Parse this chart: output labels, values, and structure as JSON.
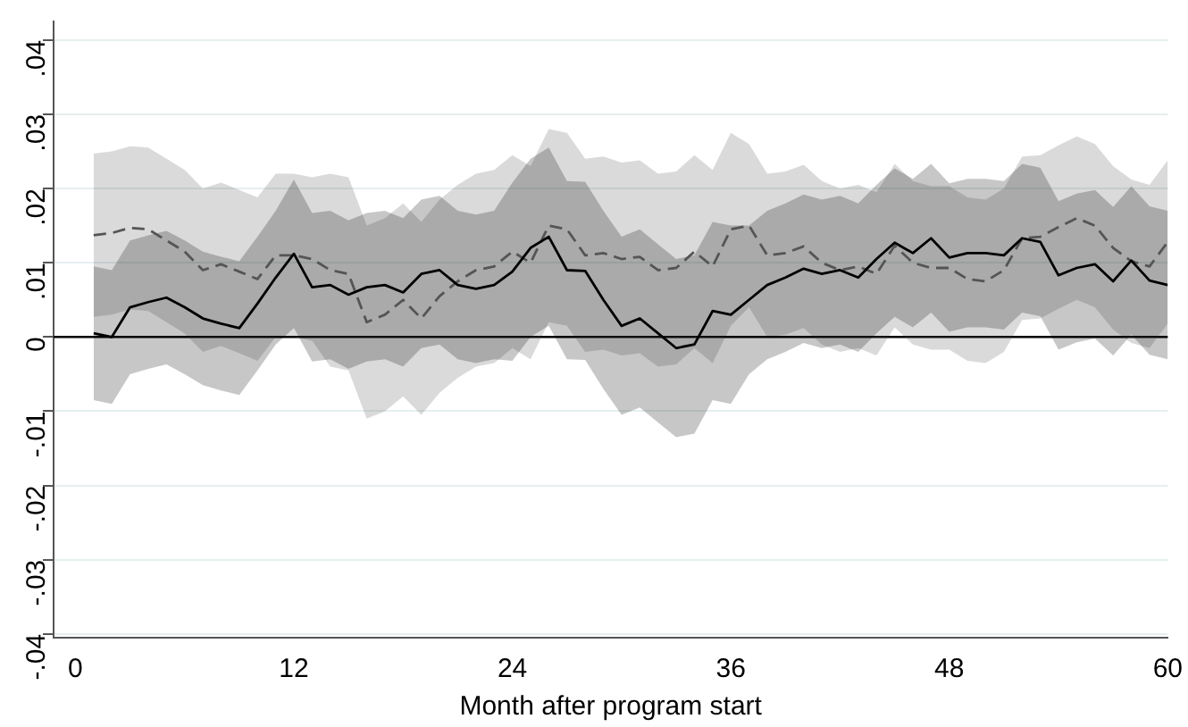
{
  "chart_data": {
    "type": "line",
    "xlabel": "Month after program start",
    "x": [
      1,
      2,
      3,
      4,
      5,
      6,
      7,
      8,
      9,
      10,
      11,
      12,
      13,
      14,
      15,
      16,
      17,
      18,
      19,
      20,
      21,
      22,
      23,
      24,
      25,
      26,
      27,
      28,
      29,
      30,
      31,
      32,
      33,
      34,
      35,
      36,
      37,
      38,
      39,
      40,
      41,
      42,
      43,
      44,
      45,
      46,
      47,
      48,
      49,
      50,
      51,
      52,
      53,
      54,
      55,
      56,
      57,
      58,
      59,
      60
    ],
    "xlim": [
      -1.2,
      60
    ],
    "xticks": [
      0,
      12,
      24,
      36,
      48,
      60
    ],
    "ylim": [
      -0.0405,
      0.0425
    ],
    "yticks": [
      {
        "value": -0.04,
        "label": "-.04"
      },
      {
        "value": -0.03,
        "label": "-.03"
      },
      {
        "value": -0.02,
        "label": "-.02"
      },
      {
        "value": -0.01,
        "label": "-.01"
      },
      {
        "value": 0,
        "label": "0"
      },
      {
        "value": 0.01,
        "label": ".01"
      },
      {
        "value": 0.02,
        "label": ".02"
      },
      {
        "value": 0.03,
        "label": ".03"
      },
      {
        "value": 0.04,
        "label": ".04"
      }
    ],
    "grid": "y",
    "legend": false,
    "marker": "none",
    "ref_lines": [
      {
        "axis": "y",
        "value": 0,
        "color": "#000000"
      }
    ],
    "series": [
      {
        "color": "#000000",
        "line_style": "solid",
        "values": [
          0.0005,
          0,
          0.004,
          0.0047,
          0.0053,
          0.004,
          0.0025,
          0.0018,
          0.0012,
          0.0045,
          0.008,
          0.0112,
          0.0067,
          0.007,
          0.0057,
          0.0067,
          0.007,
          0.006,
          0.0085,
          0.009,
          0.007,
          0.0065,
          0.007,
          0.0088,
          0.012,
          0.0135,
          0.009,
          0.0089,
          0.005,
          0.0015,
          0.0025,
          0.0005,
          -0.0015,
          -0.001,
          0.0035,
          0.003,
          0.005,
          0.007,
          0.008,
          0.0092,
          0.0085,
          0.009,
          0.008,
          0.0105,
          0.0127,
          0.0113,
          0.0133,
          0.0107,
          0.0113,
          0.0113,
          0.011,
          0.0133,
          0.0128,
          0.0083,
          0.0093,
          0.0098,
          0.0075,
          0.0103,
          0.0076,
          0.007
        ],
        "lower": [
          -0.0085,
          -0.009,
          -0.005,
          -0.0043,
          -0.0037,
          -0.005,
          -0.0065,
          -0.0072,
          -0.0078,
          -0.0045,
          -0.001,
          0.0012,
          -0.0033,
          -0.003,
          -0.0043,
          -0.0033,
          -0.003,
          -0.004,
          -0.0015,
          -0.001,
          -0.003,
          -0.0035,
          -0.003,
          -0.0032,
          0,
          0.0015,
          -0.003,
          -0.0031,
          -0.007,
          -0.0105,
          -0.0095,
          -0.0115,
          -0.0135,
          -0.013,
          -0.0085,
          -0.009,
          -0.005,
          -0.003,
          -0.002,
          -0.0008,
          -0.0015,
          -0.001,
          -0.002,
          0.0005,
          0.0027,
          0.0013,
          0.0033,
          0.0007,
          0.0013,
          0.0013,
          0.001,
          0.0033,
          0.0028,
          -0.0017,
          -0.0007,
          -0.0002,
          -0.0025,
          0.0003,
          -0.0024,
          -0.003
        ],
        "upper": [
          0.0095,
          0.009,
          0.013,
          0.0137,
          0.0143,
          0.013,
          0.0115,
          0.0108,
          0.0102,
          0.0135,
          0.017,
          0.0212,
          0.0167,
          0.017,
          0.0157,
          0.0167,
          0.017,
          0.016,
          0.0185,
          0.019,
          0.017,
          0.0165,
          0.017,
          0.0208,
          0.024,
          0.0255,
          0.021,
          0.0209,
          0.017,
          0.0135,
          0.0145,
          0.0125,
          0.0105,
          0.011,
          0.0155,
          0.015,
          0.015,
          0.017,
          0.018,
          0.0192,
          0.0185,
          0.019,
          0.018,
          0.0205,
          0.0227,
          0.0213,
          0.0233,
          0.0207,
          0.0213,
          0.0213,
          0.021,
          0.0233,
          0.0228,
          0.0183,
          0.0193,
          0.0198,
          0.0175,
          0.0203,
          0.0176,
          0.017
        ]
      },
      {
        "color": "#555555",
        "line_style": "dashed",
        "values": [
          0.0137,
          0.014,
          0.0147,
          0.0145,
          0.013,
          0.0115,
          0.009,
          0.0098,
          0.0088,
          0.0078,
          0.011,
          0.011,
          0.0105,
          0.009,
          0.0085,
          0.002,
          0.003,
          0.005,
          0.0025,
          0.0055,
          0.0075,
          0.009,
          0.0095,
          0.0115,
          0.01,
          0.015,
          0.0145,
          0.011,
          0.0113,
          0.0105,
          0.0108,
          0.009,
          0.0093,
          0.0115,
          0.0095,
          0.0145,
          0.015,
          0.011,
          0.0113,
          0.0122,
          0.01,
          0.009,
          0.0095,
          0.0085,
          0.0123,
          0.01,
          0.0093,
          0.0093,
          0.0078,
          0.0075,
          0.009,
          0.0133,
          0.0135,
          0.0148,
          0.016,
          0.015,
          0.012,
          0.0102,
          0.0095,
          0.0128
        ],
        "lower": [
          0.0027,
          0.003,
          0.0037,
          0.0035,
          0.002,
          0.0005,
          -0.002,
          -0.0012,
          -0.0022,
          -0.0032,
          0,
          0,
          -0.0005,
          -0.004,
          -0.0045,
          -0.011,
          -0.01,
          -0.008,
          -0.0105,
          -0.0075,
          -0.0055,
          -0.004,
          -0.0035,
          -0.0015,
          -0.003,
          0.002,
          0.0015,
          -0.002,
          -0.0017,
          -0.0025,
          -0.0022,
          -0.004,
          -0.0037,
          -0.0015,
          -0.0035,
          0.0015,
          0.004,
          0,
          0.0003,
          0.0012,
          -0.001,
          -0.002,
          -0.0015,
          -0.0025,
          0.0013,
          -0.001,
          -0.0017,
          -0.0017,
          -0.0032,
          -0.0035,
          -0.002,
          0.0023,
          0.0025,
          0.0038,
          0.005,
          0.004,
          0.001,
          -0.0008,
          -0.0015,
          0.0018
        ],
        "upper": [
          0.0247,
          0.025,
          0.0257,
          0.0255,
          0.024,
          0.0225,
          0.02,
          0.0208,
          0.0198,
          0.0188,
          0.022,
          0.022,
          0.0215,
          0.022,
          0.0215,
          0.015,
          0.016,
          0.018,
          0.0155,
          0.0185,
          0.0205,
          0.022,
          0.0225,
          0.0245,
          0.023,
          0.028,
          0.0275,
          0.024,
          0.0243,
          0.0235,
          0.0238,
          0.022,
          0.0223,
          0.0245,
          0.0225,
          0.0275,
          0.026,
          0.022,
          0.0223,
          0.0232,
          0.021,
          0.02,
          0.0205,
          0.0195,
          0.0233,
          0.021,
          0.0203,
          0.0203,
          0.0188,
          0.0185,
          0.02,
          0.0243,
          0.0245,
          0.0258,
          0.027,
          0.026,
          0.023,
          0.0212,
          0.0205,
          0.0238
        ]
      }
    ]
  }
}
